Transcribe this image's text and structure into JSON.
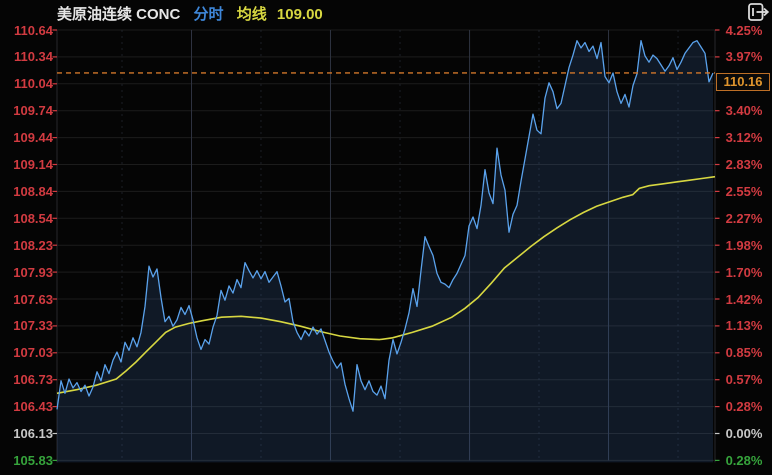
{
  "header": {
    "symbol": "美原油连续 CONC",
    "mode": "分时",
    "ma_label": "均线",
    "ma_value": "109.00"
  },
  "toolbar": {
    "landscape_icon": "rotate-to-landscape"
  },
  "chart_data": {
    "type": "line",
    "title": "美原油连续 CONC 分时",
    "legend": [
      "分时价格",
      "均线"
    ],
    "prev_close": 106.13,
    "last_price": 110.16,
    "last_price_label": "110.16",
    "ma_last_value": 109.0,
    "ylim": [
      105.83,
      110.64
    ],
    "grid_on": true,
    "left_axis": [
      {
        "label": "110.64",
        "state": "up"
      },
      {
        "label": "110.34",
        "state": "up"
      },
      {
        "label": "110.04",
        "state": "up"
      },
      {
        "label": "109.74",
        "state": "up"
      },
      {
        "label": "109.44",
        "state": "up"
      },
      {
        "label": "109.14",
        "state": "up"
      },
      {
        "label": "108.84",
        "state": "up"
      },
      {
        "label": "108.54",
        "state": "up"
      },
      {
        "label": "108.23",
        "state": "up"
      },
      {
        "label": "107.93",
        "state": "up"
      },
      {
        "label": "107.63",
        "state": "up"
      },
      {
        "label": "107.33",
        "state": "up"
      },
      {
        "label": "107.03",
        "state": "up"
      },
      {
        "label": "106.73",
        "state": "up"
      },
      {
        "label": "106.43",
        "state": "up"
      },
      {
        "label": "106.13",
        "state": "flat"
      },
      {
        "label": "105.83",
        "state": "down"
      }
    ],
    "right_axis": [
      {
        "label": "4.25%",
        "state": "up",
        "slot": 0
      },
      {
        "label": "3.97%",
        "state": "up",
        "slot": 1
      },
      {
        "label": "3.40%",
        "state": "up",
        "slot": 3
      },
      {
        "label": "3.12%",
        "state": "up",
        "slot": 4
      },
      {
        "label": "2.83%",
        "state": "up",
        "slot": 5
      },
      {
        "label": "2.55%",
        "state": "up",
        "slot": 6
      },
      {
        "label": "2.27%",
        "state": "up",
        "slot": 7
      },
      {
        "label": "1.98%",
        "state": "up",
        "slot": 8
      },
      {
        "label": "1.70%",
        "state": "up",
        "slot": 9
      },
      {
        "label": "1.42%",
        "state": "up",
        "slot": 10
      },
      {
        "label": "1.13%",
        "state": "up",
        "slot": 11
      },
      {
        "label": "0.85%",
        "state": "up",
        "slot": 12
      },
      {
        "label": "0.57%",
        "state": "up",
        "slot": 13
      },
      {
        "label": "0.28%",
        "state": "up",
        "slot": 14
      },
      {
        "label": "0.00%",
        "state": "flat",
        "slot": 15
      },
      {
        "label": "0.28%",
        "state": "down",
        "slot": 16
      }
    ],
    "price_series": [
      106.4,
      106.72,
      106.58,
      106.74,
      106.64,
      106.7,
      106.6,
      106.67,
      106.55,
      106.65,
      106.82,
      106.72,
      106.9,
      106.8,
      106.95,
      107.04,
      106.93,
      107.15,
      107.06,
      107.2,
      107.1,
      107.26,
      107.55,
      108.0,
      107.88,
      107.97,
      107.65,
      107.38,
      107.44,
      107.33,
      107.4,
      107.54,
      107.46,
      107.56,
      107.4,
      107.2,
      107.07,
      107.18,
      107.13,
      107.32,
      107.45,
      107.73,
      107.62,
      107.78,
      107.7,
      107.85,
      107.76,
      108.04,
      107.95,
      107.87,
      107.95,
      107.86,
      107.94,
      107.82,
      107.88,
      107.94,
      107.78,
      107.6,
      107.64,
      107.38,
      107.26,
      107.18,
      107.28,
      107.22,
      107.32,
      107.24,
      107.3,
      107.17,
      107.04,
      106.94,
      106.86,
      106.92,
      106.68,
      106.52,
      106.38,
      106.9,
      106.72,
      106.62,
      106.72,
      106.6,
      106.56,
      106.66,
      106.52,
      106.95,
      107.18,
      107.02,
      107.15,
      107.3,
      107.48,
      107.75,
      107.55,
      107.95,
      108.33,
      108.22,
      108.12,
      107.92,
      107.82,
      107.8,
      107.76,
      107.85,
      107.92,
      108.02,
      108.12,
      108.45,
      108.55,
      108.42,
      108.68,
      109.08,
      108.82,
      108.7,
      109.32,
      109.02,
      108.85,
      108.38,
      108.58,
      108.68,
      108.95,
      109.2,
      109.45,
      109.7,
      109.52,
      109.48,
      109.88,
      110.05,
      109.95,
      109.76,
      109.82,
      110.02,
      110.22,
      110.36,
      110.52,
      110.44,
      110.5,
      110.4,
      110.46,
      110.32,
      110.5,
      110.12,
      110.05,
      110.16,
      109.95,
      109.82,
      109.92,
      109.78,
      110.02,
      110.15,
      110.52,
      110.35,
      110.28,
      110.36,
      110.32,
      110.25,
      110.18,
      110.24,
      110.33,
      110.2,
      110.28,
      110.38,
      110.44,
      110.5,
      110.52,
      110.45,
      110.38,
      110.06,
      110.16
    ],
    "ma_series": [
      [
        0,
        106.58
      ],
      [
        0.03,
        106.62
      ],
      [
        0.06,
        106.67
      ],
      [
        0.09,
        106.74
      ],
      [
        0.105,
        106.83
      ],
      [
        0.12,
        106.93
      ],
      [
        0.135,
        107.04
      ],
      [
        0.15,
        107.15
      ],
      [
        0.165,
        107.26
      ],
      [
        0.18,
        107.32
      ],
      [
        0.2,
        107.36
      ],
      [
        0.22,
        107.39
      ],
      [
        0.25,
        107.43
      ],
      [
        0.28,
        107.44
      ],
      [
        0.31,
        107.42
      ],
      [
        0.34,
        107.38
      ],
      [
        0.37,
        107.33
      ],
      [
        0.4,
        107.27
      ],
      [
        0.43,
        107.22
      ],
      [
        0.46,
        107.19
      ],
      [
        0.49,
        107.18
      ],
      [
        0.51,
        107.2
      ],
      [
        0.54,
        107.26
      ],
      [
        0.57,
        107.33
      ],
      [
        0.6,
        107.43
      ],
      [
        0.62,
        107.53
      ],
      [
        0.64,
        107.65
      ],
      [
        0.66,
        107.81
      ],
      [
        0.68,
        107.98
      ],
      [
        0.7,
        108.1
      ],
      [
        0.72,
        108.22
      ],
      [
        0.74,
        108.33
      ],
      [
        0.76,
        108.43
      ],
      [
        0.78,
        108.52
      ],
      [
        0.8,
        108.6
      ],
      [
        0.82,
        108.67
      ],
      [
        0.84,
        108.72
      ],
      [
        0.86,
        108.77
      ],
      [
        0.875,
        108.8
      ],
      [
        0.885,
        108.87
      ],
      [
        0.9,
        108.9
      ],
      [
        0.92,
        108.92
      ],
      [
        0.94,
        108.94
      ],
      [
        0.96,
        108.96
      ],
      [
        0.98,
        108.98
      ],
      [
        1,
        109.0
      ]
    ],
    "grid": {
      "v_solid": [
        0.2044,
        0.4156,
        0.627,
        0.8382
      ],
      "v_dashed": [
        0.0988,
        0.31,
        0.5213,
        0.7325,
        0.9438
      ]
    },
    "colors": {
      "up": "#d23b41",
      "down": "#36a43c",
      "flat": "#c8c8c8",
      "price_line": "#5aa2ec",
      "area_fill": "rgba(70,125,200,0.17)",
      "ma_line": "#d7d741",
      "last_price_text": "#e0952d",
      "last_price_box_border": "#bd6f26",
      "dashed_line": "#d2772a",
      "grid_h": "#1c1c1c",
      "grid_v": "#2e3340",
      "axis_border": "#26262a",
      "title_blue": "#3f87d9",
      "title_yellow": "#d7d741",
      "title_white": "#e6e6e6",
      "background": "#050505"
    }
  }
}
